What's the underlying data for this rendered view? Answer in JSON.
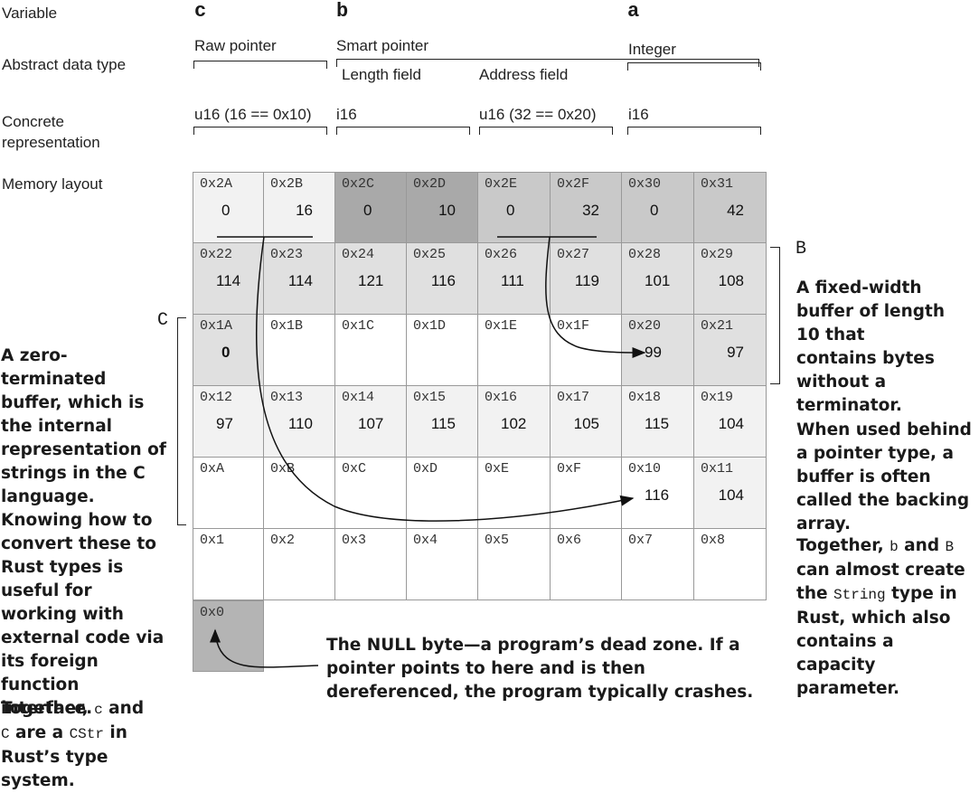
{
  "row_labels": {
    "variable": "Variable",
    "adt": "Abstract data type",
    "concrete": "Concrete\nrepresentation",
    "memory": "Memory layout"
  },
  "variables": {
    "c": "c",
    "b": "b",
    "a": "a"
  },
  "adt": {
    "raw_pointer": "Raw pointer",
    "smart_pointer": "Smart pointer",
    "length_field": "Length field",
    "address_field": "Address field",
    "integer": "Integer"
  },
  "concrete": {
    "c": "u16 (16 == 0x10)",
    "b_len": "i16",
    "b_addr": "u16 (32 == 0x20)",
    "a": "i16"
  },
  "colors": {
    "white": "#ffffff",
    "very_light": "#f2f2f2",
    "light": "#e0e0e0",
    "medium": "#c9c9c9",
    "dark": "#a9a9a9",
    "null": "#b4b4b4"
  },
  "memory": {
    "rows": [
      [
        {
          "addr": "0x2A",
          "value": "0",
          "shade": "very_light"
        },
        {
          "addr": "0x2B",
          "value": "16",
          "shade": "very_light"
        },
        {
          "addr": "0x2C",
          "value": "0",
          "shade": "dark"
        },
        {
          "addr": "0x2D",
          "value": "10",
          "shade": "dark"
        },
        {
          "addr": "0x2E",
          "value": "0",
          "shade": "medium"
        },
        {
          "addr": "0x2F",
          "value": "32",
          "shade": "medium"
        },
        {
          "addr": "0x30",
          "value": "0",
          "shade": "medium"
        },
        {
          "addr": "0x31",
          "value": "42",
          "shade": "medium"
        }
      ],
      [
        {
          "addr": "0x22",
          "value": "114",
          "shade": "light"
        },
        {
          "addr": "0x23",
          "value": "114",
          "shade": "light"
        },
        {
          "addr": "0x24",
          "value": "121",
          "shade": "light"
        },
        {
          "addr": "0x25",
          "value": "116",
          "shade": "light"
        },
        {
          "addr": "0x26",
          "value": "111",
          "shade": "light"
        },
        {
          "addr": "0x27",
          "value": "119",
          "shade": "light"
        },
        {
          "addr": "0x28",
          "value": "101",
          "shade": "light"
        },
        {
          "addr": "0x29",
          "value": "108",
          "shade": "light"
        }
      ],
      [
        {
          "addr": "0x1A",
          "value": "0",
          "shade": "light",
          "bold": true
        },
        {
          "addr": "0x1B",
          "value": "",
          "shade": "white"
        },
        {
          "addr": "0x1C",
          "value": "",
          "shade": "white"
        },
        {
          "addr": "0x1D",
          "value": "",
          "shade": "white"
        },
        {
          "addr": "0x1E",
          "value": "",
          "shade": "white"
        },
        {
          "addr": "0x1F",
          "value": "",
          "shade": "white"
        },
        {
          "addr": "0x20",
          "value": "99",
          "shade": "light"
        },
        {
          "addr": "0x21",
          "value": "97",
          "shade": "light"
        }
      ],
      [
        {
          "addr": "0x12",
          "value": "97",
          "shade": "very_light"
        },
        {
          "addr": "0x13",
          "value": "110",
          "shade": "very_light"
        },
        {
          "addr": "0x14",
          "value": "107",
          "shade": "very_light"
        },
        {
          "addr": "0x15",
          "value": "115",
          "shade": "very_light"
        },
        {
          "addr": "0x16",
          "value": "102",
          "shade": "very_light"
        },
        {
          "addr": "0x17",
          "value": "105",
          "shade": "very_light"
        },
        {
          "addr": "0x18",
          "value": "115",
          "shade": "very_light"
        },
        {
          "addr": "0x19",
          "value": "104",
          "shade": "very_light"
        }
      ],
      [
        {
          "addr": "0xA",
          "value": "",
          "shade": "white"
        },
        {
          "addr": "0xB",
          "value": "",
          "shade": "white"
        },
        {
          "addr": "0xC",
          "value": "",
          "shade": "white"
        },
        {
          "addr": "0xD",
          "value": "",
          "shade": "white"
        },
        {
          "addr": "0xE",
          "value": "",
          "shade": "white"
        },
        {
          "addr": "0xF",
          "value": "",
          "shade": "white"
        },
        {
          "addr": "0x10",
          "value": "116",
          "shade": "white"
        },
        {
          "addr": "0x11",
          "value": "104",
          "shade": "very_light"
        }
      ],
      [
        {
          "addr": "0x1",
          "value": "",
          "shade": "white"
        },
        {
          "addr": "0x2",
          "value": "",
          "shade": "white"
        },
        {
          "addr": "0x3",
          "value": "",
          "shade": "white"
        },
        {
          "addr": "0x4",
          "value": "",
          "shade": "white"
        },
        {
          "addr": "0x5",
          "value": "",
          "shade": "white"
        },
        {
          "addr": "0x6",
          "value": "",
          "shade": "white"
        },
        {
          "addr": "0x7",
          "value": "",
          "shade": "white"
        },
        {
          "addr": "0x8",
          "value": "",
          "shade": "white"
        }
      ]
    ],
    "null_cell": {
      "addr": "0x0",
      "shade": "null"
    }
  },
  "bracket_labels": {
    "B": "B",
    "C": "C"
  },
  "notes": {
    "left_1": "A zero-terminated buffer, which is the internal representation of strings in the C language.",
    "left_2": "Knowing how to convert these to Rust types is useful for working with external code via its foreign function interface.",
    "left_3": {
      "pre": "Together, ",
      "code1": "c",
      "mid": " and ",
      "code2": "C",
      "mid2": " are a ",
      "code3": "CStr",
      "post": " in Rust’s type system."
    },
    "right_1": "A fixed-width buffer of length 10 that contains bytes without a terminator.",
    "right_2": "When used behind a pointer type, a buffer is often called the backing array.",
    "right_3": {
      "pre": "Together, ",
      "code1": "b",
      "mid": " and ",
      "code2": "B",
      "mid2": " can almost create the ",
      "code3": "String",
      "post": " type in Rust, which also contains a capacity parameter."
    },
    "null": "The NULL byte—a program’s dead zone. If a pointer points to here and is then dereferenced, the program typically crashes."
  }
}
